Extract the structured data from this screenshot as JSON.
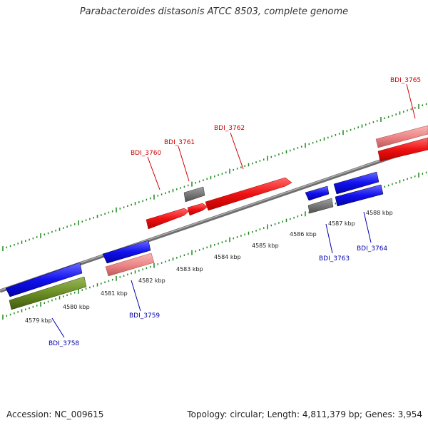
{
  "title": "Parabacteroides distasonis ATCC 8503, complete genome",
  "footer": {
    "accession": "Accession: NC_009615",
    "summary": "Topology: circular; Length: 4,811,379 bp; Genes: 3,954"
  },
  "colors": {
    "forward_gene": "#ee1111",
    "reverse_gene": "#1111ee",
    "forward_pseudo": "#ee8888",
    "reverse_other": "#6b8e23",
    "unknown_gene": "#777777",
    "tick": "#1a8a1a",
    "backbone": "#888888",
    "forward_label": "#cc0000",
    "reverse_label": "#0000aa"
  },
  "scale_labels": [
    "4579 kbp",
    "4580 kbp",
    "4581 kbp",
    "4582 kbp",
    "4583 kbp",
    "4584 kbp",
    "4585 kbp",
    "4586 kbp",
    "4587 kbp",
    "4588 kbp"
  ],
  "genes": [
    {
      "name": "BDI_3758",
      "strand": "reverse",
      "type": "CDS"
    },
    {
      "name": "BDI_3759",
      "strand": "reverse",
      "type": "CDS"
    },
    {
      "name": "BDI_3760",
      "strand": "forward",
      "type": "CDS"
    },
    {
      "name": "BDI_3761",
      "strand": "forward",
      "type": "other"
    },
    {
      "name": "BDI_3762",
      "strand": "forward",
      "type": "CDS"
    },
    {
      "name": "BDI_3763",
      "strand": "reverse",
      "type": "other"
    },
    {
      "name": "BDI_3764",
      "strand": "reverse",
      "type": "CDS"
    },
    {
      "name": "BDI_3765",
      "strand": "forward",
      "type": "CDS"
    }
  ]
}
